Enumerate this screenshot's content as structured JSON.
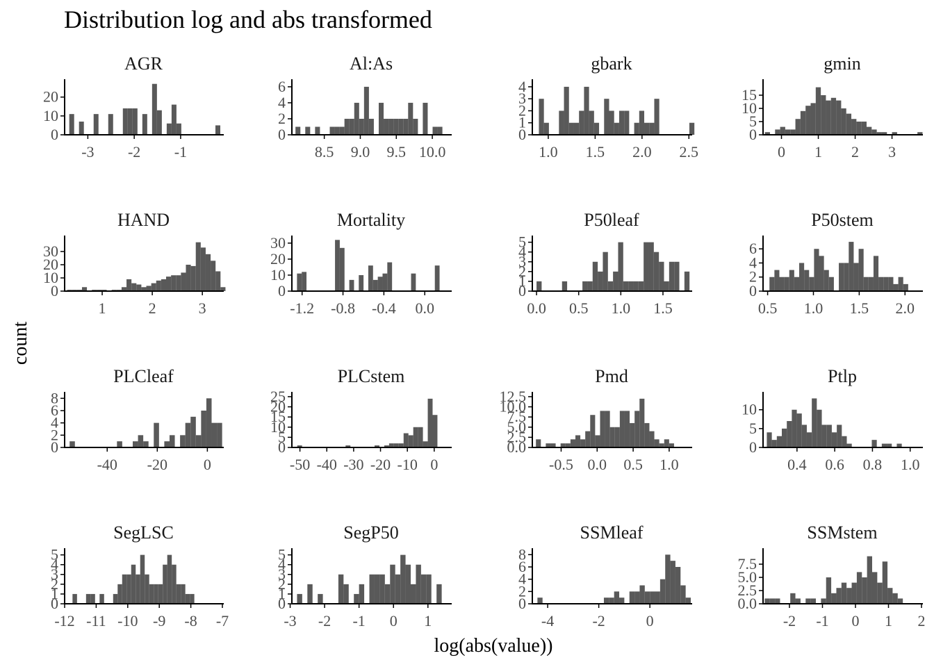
{
  "chart_data": {
    "type": "bar",
    "title": "Distribution log and abs transformed",
    "xlabel": "log(abs(value))",
    "ylabel": "count",
    "grid": false,
    "legend": "none",
    "bar_color": "#595959",
    "axis_color": "#000000",
    "panels": [
      {
        "name": "AGR",
        "xlim": [
          -3.5,
          -0.1
        ],
        "ylim": [
          0,
          28
        ],
        "xticks": [
          -3,
          -2,
          -1
        ],
        "xtick_labels": [
          "-3",
          "-2",
          "-1"
        ],
        "yticks": [
          0,
          10,
          20
        ],
        "ytick_labels": [
          "0",
          "10",
          "20"
        ],
        "x0": -3.4,
        "binwidth": 0.105,
        "counts": [
          11,
          0,
          7,
          0,
          0,
          11,
          0,
          0,
          11,
          0,
          0,
          14,
          14,
          14,
          0,
          11,
          0,
          27,
          13,
          0,
          6,
          16,
          6,
          0,
          0,
          0,
          0,
          0,
          0,
          0,
          5
        ]
      },
      {
        "name": "Al:As",
        "xlim": [
          8.05,
          10.25
        ],
        "ylim": [
          0,
          6.6
        ],
        "xticks": [
          8.5,
          9.0,
          9.5,
          10.0
        ],
        "xtick_labels": [
          "8.5",
          "9.0",
          "9.5",
          "10.0"
        ],
        "yticks": [
          0,
          2,
          4,
          6
        ],
        "ytick_labels": [
          "0",
          "2",
          "4",
          "6"
        ],
        "x0": 8.1,
        "binwidth": 0.068,
        "counts": [
          1,
          0,
          1,
          0,
          1,
          0,
          0,
          1,
          1,
          1,
          2,
          2,
          4,
          2,
          6,
          2,
          0,
          4,
          2,
          2,
          2,
          2,
          2,
          4,
          2,
          0,
          4,
          0,
          1,
          1
        ]
      },
      {
        "name": "gbark",
        "xlim": [
          0.83,
          2.52
        ],
        "ylim": [
          0,
          4.4
        ],
        "xticks": [
          1.0,
          1.5,
          2.0,
          2.5
        ],
        "xtick_labels": [
          "1.0",
          "1.5",
          "2.0",
          "2.5"
        ],
        "yticks": [
          0,
          1,
          2,
          3,
          4
        ],
        "ytick_labels": [
          "0",
          "1",
          "2",
          "3",
          "4"
        ],
        "x0": 0.9,
        "binwidth": 0.0535,
        "counts": [
          3,
          1,
          0,
          0,
          2,
          4,
          1,
          1,
          2,
          4,
          2,
          1,
          0,
          3,
          2,
          1,
          2,
          2,
          0,
          1,
          2,
          1,
          1,
          3,
          0,
          0,
          0,
          0,
          0,
          0,
          1
        ]
      },
      {
        "name": "gmin",
        "xlim": [
          -0.5,
          3.8
        ],
        "ylim": [
          0,
          20
        ],
        "xticks": [
          0,
          1,
          2,
          3
        ],
        "xtick_labels": [
          "0",
          "1",
          "2",
          "3"
        ],
        "yticks": [
          0,
          5,
          10,
          15
        ],
        "ytick_labels": [
          "0",
          "5",
          "10",
          "15"
        ],
        "x0": -0.45,
        "binwidth": 0.138,
        "counts": [
          1,
          0,
          2,
          3,
          2,
          2,
          6,
          9,
          11,
          12,
          18,
          15,
          13,
          14,
          13,
          10,
          8,
          6,
          5,
          5,
          3,
          2,
          1,
          1,
          0,
          1,
          0,
          0,
          0,
          0,
          1
        ]
      },
      {
        "name": "HAND",
        "xlim": [
          0.25,
          3.4
        ],
        "ylim": [
          0,
          40
        ],
        "xticks": [
          1,
          2,
          3
        ],
        "xtick_labels": [
          "1",
          "2",
          "3"
        ],
        "yticks": [
          0,
          10,
          20,
          30
        ],
        "ytick_labels": [
          "0",
          "10",
          "20",
          "30"
        ],
        "x0": 0.3,
        "binwidth": 0.0988,
        "counts": [
          1,
          1,
          1,
          3,
          0,
          1,
          1,
          1,
          0,
          1,
          1,
          3,
          9,
          6,
          5,
          3,
          4,
          6,
          8,
          9,
          11,
          12,
          12,
          14,
          20,
          19,
          37,
          33,
          28,
          23,
          15,
          3
        ]
      },
      {
        "name": "Mortality",
        "xlim": [
          -1.3,
          0.25
        ],
        "ylim": [
          0,
          33
        ],
        "xticks": [
          -1.2,
          -0.8,
          -0.4,
          0.0
        ],
        "xtick_labels": [
          "-1.2",
          "-0.8",
          "-0.4",
          "0.0"
        ],
        "yticks": [
          0,
          10,
          20,
          30
        ],
        "ytick_labels": [
          "0",
          "10",
          "20",
          "30"
        ],
        "x0": -1.25,
        "binwidth": 0.0465,
        "counts": [
          11,
          12,
          0,
          0,
          0,
          0,
          0,
          0,
          32,
          27,
          0,
          7,
          0,
          10,
          0,
          16,
          7,
          9,
          11,
          18,
          0,
          0,
          0,
          0,
          11,
          0,
          0,
          0,
          0,
          16
        ]
      },
      {
        "name": "P50leaf",
        "xlim": [
          -0.05,
          1.83
        ],
        "ylim": [
          0,
          5.4
        ],
        "xticks": [
          0.0,
          0.5,
          1.0,
          1.5
        ],
        "xtick_labels": [
          "0.0",
          "0.5",
          "1.0",
          "1.5"
        ],
        "yticks": [
          0,
          1,
          2,
          3,
          4,
          5
        ],
        "ytick_labels": [
          "0",
          "1",
          "2",
          "3",
          "4",
          "5"
        ],
        "x0": 0.0,
        "binwidth": 0.0605,
        "counts": [
          1,
          0,
          0,
          0,
          0,
          1,
          0,
          0,
          0,
          1,
          1,
          3,
          2,
          4,
          1,
          2,
          5,
          1,
          1,
          1,
          1,
          5,
          5,
          4,
          3,
          1,
          3,
          3,
          0,
          2
        ]
      },
      {
        "name": "P50stem",
        "xlim": [
          0.45,
          2.18
        ],
        "ylim": [
          0,
          7.5
        ],
        "xticks": [
          0.5,
          1.0,
          1.5,
          2.0
        ],
        "xtick_labels": [
          "0.5",
          "1.0",
          "1.5",
          "2.0"
        ],
        "yticks": [
          0,
          2,
          4,
          6
        ],
        "ytick_labels": [
          "0",
          "2",
          "4",
          "6"
        ],
        "x0": 0.52,
        "binwidth": 0.0541,
        "counts": [
          2,
          3,
          2,
          2,
          3,
          2,
          4,
          3,
          2,
          6,
          5,
          3,
          2,
          0,
          4,
          4,
          7,
          4,
          6,
          2,
          2,
          5,
          2,
          2,
          2,
          1,
          2,
          1
        ]
      },
      {
        "name": "PLCleaf",
        "xlim": [
          -57,
          6
        ],
        "ylim": [
          0,
          8.6
        ],
        "xticks": [
          -40,
          -20,
          0
        ],
        "xtick_labels": [
          "-40",
          "-20",
          "0"
        ],
        "yticks": [
          0,
          2,
          4,
          6,
          8
        ],
        "ytick_labels": [
          "0",
          "2",
          "4",
          "6",
          "8"
        ],
        "x0": -55,
        "binwidth": 2.1,
        "counts": [
          1,
          0,
          0,
          0,
          0,
          0,
          0,
          0,
          0,
          1,
          0,
          0,
          1,
          2,
          1,
          0,
          4,
          0,
          1,
          2,
          0,
          2,
          4,
          5,
          2,
          6,
          8,
          4,
          4
        ]
      },
      {
        "name": "PLCstem",
        "xlim": [
          -53,
          6
        ],
        "ylim": [
          0,
          26
        ],
        "xticks": [
          -50,
          -40,
          -30,
          -20,
          -10,
          0
        ],
        "xtick_labels": [
          "-50",
          "-40",
          "-30",
          "-20",
          "-10",
          "0"
        ],
        "yticks": [
          0,
          5,
          10,
          15,
          20,
          25
        ],
        "ytick_labels": [
          "0",
          "5",
          "10",
          "15",
          "20",
          "25"
        ],
        "x0": -51,
        "binwidth": 1.8,
        "counts": [
          1,
          0,
          0,
          0,
          0,
          0,
          0,
          0,
          0,
          0,
          1,
          0,
          0,
          0,
          0,
          0,
          1,
          0,
          1,
          2,
          2,
          2,
          7,
          6,
          10,
          10,
          3,
          24,
          16
        ]
      },
      {
        "name": "Pmd",
        "xlim": [
          -0.9,
          1.3
        ],
        "ylim": [
          0,
          13
        ],
        "xticks": [
          -0.5,
          0.0,
          0.5,
          1.0
        ],
        "xtick_labels": [
          "-0.5",
          "0.0",
          "0.5",
          "1.0"
        ],
        "yticks": [
          0,
          2.5,
          5,
          7.5,
          10,
          12.5
        ],
        "ytick_labels": [
          "0.0",
          "2.5",
          "5.0",
          "7.5",
          "10.0",
          "12.5"
        ],
        "x0": -0.85,
        "binwidth": 0.0685,
        "counts": [
          2,
          0,
          1,
          1,
          0,
          1,
          1,
          2,
          3,
          2,
          4,
          8,
          3,
          9,
          9,
          5,
          5,
          9,
          9,
          6,
          9,
          12,
          6,
          4,
          2,
          1,
          2,
          1,
          0
        ]
      },
      {
        "name": "Ptlp",
        "xlim": [
          0.22,
          1.06
        ],
        "ylim": [
          0,
          14
        ],
        "xticks": [
          0.4,
          0.6,
          0.8,
          1.0
        ],
        "xtick_labels": [
          "0.4",
          "0.6",
          "0.8",
          "1.0"
        ],
        "yticks": [
          0,
          5,
          10
        ],
        "ytick_labels": [
          "0",
          "5",
          "10"
        ],
        "x0": 0.24,
        "binwidth": 0.0265,
        "counts": [
          4,
          2,
          3,
          5,
          7,
          10,
          9,
          6,
          4,
          13,
          10,
          6,
          6,
          4,
          6,
          3,
          1,
          0,
          0,
          0,
          0,
          2,
          0,
          1,
          1,
          0,
          1
        ]
      },
      {
        "name": "SegLSC",
        "xlim": [
          -12,
          -7
        ],
        "ylim": [
          0,
          5.4
        ],
        "xticks": [
          -12,
          -11,
          -10,
          -9,
          -8,
          -7
        ],
        "xtick_labels": [
          "-12",
          "-11",
          "-10",
          "-9",
          "-8",
          "-7"
        ],
        "yticks": [
          0,
          1,
          2,
          3,
          4,
          5
        ],
        "ytick_labels": [
          "0",
          "1",
          "2",
          "3",
          "4",
          "5"
        ],
        "x0": -11.75,
        "binwidth": 0.143,
        "counts": [
          1,
          0,
          0,
          1,
          1,
          0,
          1,
          0,
          0,
          1,
          2,
          3,
          3,
          4,
          3,
          5,
          3,
          2,
          2,
          2,
          4,
          5,
          4,
          2,
          2,
          1,
          1
        ]
      },
      {
        "name": "SegP50",
        "xlim": [
          -2.95,
          1.65
        ],
        "ylim": [
          0,
          5.4
        ],
        "xticks": [
          -3,
          -2,
          -1,
          0,
          1
        ],
        "xtick_labels": [
          "-3",
          "-2",
          "-1",
          "0",
          "1"
        ],
        "yticks": [
          0,
          1,
          2,
          3,
          4,
          5
        ],
        "ytick_labels": [
          "0",
          "1",
          "2",
          "3",
          "4",
          "5"
        ],
        "x0": -2.8,
        "binwidth": 0.15,
        "counts": [
          1,
          0,
          2,
          0,
          1,
          0,
          0,
          0,
          3,
          2,
          0,
          1,
          2,
          0,
          3,
          3,
          3,
          2,
          4,
          3,
          5,
          4,
          2,
          4,
          3,
          3,
          0,
          2
        ]
      },
      {
        "name": "SSMleaf",
        "xlim": [
          -4.6,
          1.6
        ],
        "ylim": [
          0,
          8.6
        ],
        "xticks": [
          -4,
          -2,
          0
        ],
        "xtick_labels": [
          "-4",
          "-2",
          "0"
        ],
        "yticks": [
          0,
          2,
          4,
          6,
          8
        ],
        "ytick_labels": [
          "0",
          "2",
          "4",
          "6",
          "8"
        ],
        "x0": -4.4,
        "binwidth": 0.2,
        "counts": [
          1,
          0,
          0,
          0,
          0,
          0,
          0,
          0,
          0,
          0,
          0,
          0,
          0,
          1,
          1,
          2,
          1,
          0,
          2,
          2,
          3,
          2,
          2,
          2,
          4,
          8,
          7,
          6,
          3,
          1
        ]
      },
      {
        "name": "SSMstem",
        "xlim": [
          -2.8,
          2.0
        ],
        "ylim": [
          0,
          10
        ],
        "xticks": [
          -2,
          -1,
          0,
          1,
          2
        ],
        "xtick_labels": [
          "-2",
          "-1",
          "0",
          "1",
          "2"
        ],
        "yticks": [
          0,
          2.5,
          5,
          7.5
        ],
        "ytick_labels": [
          "0.0",
          "2.5",
          "5.0",
          "7.5"
        ],
        "x0": -2.75,
        "binwidth": 0.155,
        "counts": [
          1,
          1,
          1,
          0,
          0,
          2,
          1,
          0,
          1,
          1,
          0,
          1,
          5,
          2,
          3,
          4,
          3,
          4,
          6,
          5,
          9,
          6,
          4,
          8,
          3,
          2,
          1
        ]
      }
    ]
  }
}
